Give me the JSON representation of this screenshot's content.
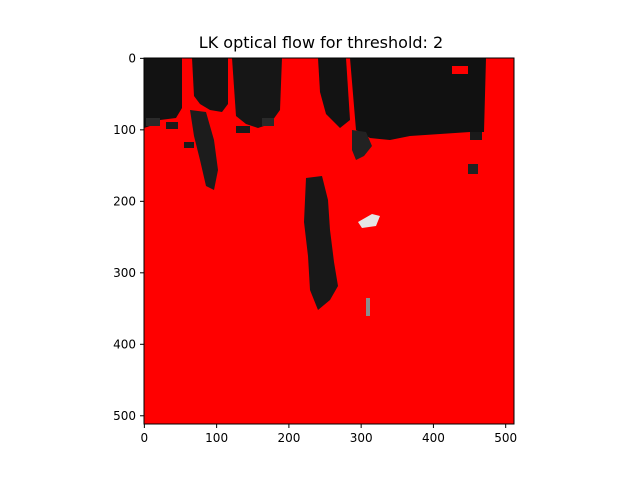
{
  "chart_data": {
    "type": "heatmap",
    "title": "LK optical flow for threshold: 2",
    "xlabel": "",
    "ylabel": "",
    "xlim": [
      0,
      511
    ],
    "ylim": [
      511,
      0
    ],
    "x_ticks": [
      0,
      100,
      200,
      300,
      400,
      500
    ],
    "y_ticks": [
      0,
      100,
      200,
      300,
      400,
      500
    ],
    "grid": false,
    "legend": "none",
    "colors": {
      "flow": "#ff0000",
      "background_dark": "#111111",
      "background_mid": "#2a2a2a",
      "highlight": "#dddddd"
    }
  }
}
